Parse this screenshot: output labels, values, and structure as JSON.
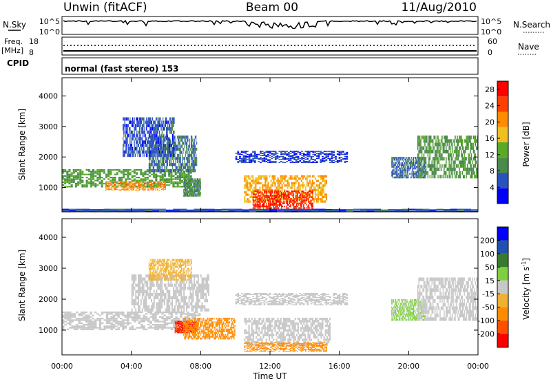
{
  "header": {
    "station": "Unwin (fitACF)",
    "beam": "Beam 00",
    "date": "11/Aug/2010"
  },
  "strips": {
    "nsky_label": "N.Sky",
    "nsky_ticks": [
      "10^5",
      "10^0"
    ],
    "nsearch_label": "N.Search",
    "nsearch_ticks": [
      "10^5",
      "10^0"
    ],
    "freq_label": "Freq.",
    "freq_unit": "[MHz]",
    "freq_ticks": [
      "18",
      "8"
    ],
    "nave_label": "Nave",
    "nave_ticks": [
      "60",
      "0"
    ],
    "cpid_label": "CPID",
    "cpid_text": "normal (fast stereo) 153"
  },
  "colors": {
    "power": [
      "#0000ff",
      "#2a52be",
      "#4a8a4a",
      "#5aaa28",
      "#f0c020",
      "#ff8c00",
      "#ff4000",
      "#ff0000"
    ],
    "velocity": [
      "#ff0000",
      "#ff5000",
      "#ff8c00",
      "#f0b030",
      "#c8c8c8",
      "#7fd040",
      "#3a7a30",
      "#2050b0",
      "#0000ff"
    ]
  },
  "chart_data": [
    {
      "type": "heatmap",
      "panel": "power",
      "ylabel": "Slant Range [km]",
      "yticks": [
        1000,
        2000,
        3000,
        4000
      ],
      "ylim": [
        200,
        4600
      ],
      "xlim": [
        0,
        24
      ],
      "xticks": [
        "00:00",
        "04:00",
        "08:00",
        "12:00",
        "16:00",
        "20:00",
        "00:00"
      ],
      "colorbar_label": "Power [dB]",
      "colorbar_ticks": [
        4,
        8,
        12,
        16,
        20,
        24,
        28
      ],
      "colorbar_range": [
        0,
        30
      ],
      "regions": [
        {
          "t0": 0.0,
          "t1": 7.5,
          "r0": 1000,
          "r1": 1600,
          "value": 12
        },
        {
          "t0": 2.5,
          "t1": 6.0,
          "r0": 900,
          "r1": 1200,
          "value": 22
        },
        {
          "t0": 5.0,
          "t1": 7.8,
          "r0": 1500,
          "r1": 2700,
          "value": 8
        },
        {
          "t0": 3.5,
          "t1": 6.5,
          "r0": 2000,
          "r1": 3300,
          "value": 6
        },
        {
          "t0": 7.0,
          "t1": 8.0,
          "r0": 700,
          "r1": 1300,
          "value": 10
        },
        {
          "t0": 10.5,
          "t1": 15.3,
          "r0": 500,
          "r1": 1400,
          "value": 20
        },
        {
          "t0": 11.0,
          "t1": 14.5,
          "r0": 300,
          "r1": 900,
          "value": 28
        },
        {
          "t0": 10.0,
          "t1": 16.5,
          "r0": 1800,
          "r1": 2200,
          "value": 5
        },
        {
          "t0": 19.0,
          "t1": 21.0,
          "r0": 1300,
          "r1": 2000,
          "value": 7
        },
        {
          "t0": 20.5,
          "t1": 24.0,
          "r0": 1300,
          "r1": 2700,
          "value": 11
        },
        {
          "t0": 0.0,
          "t1": 24.0,
          "r0": 200,
          "r1": 300,
          "value": 6
        }
      ]
    },
    {
      "type": "heatmap",
      "panel": "velocity",
      "ylabel": "Slant Range [km]",
      "yticks": [
        1000,
        2000,
        3000,
        4000
      ],
      "ylim": [
        200,
        4600
      ],
      "xlim": [
        0,
        24
      ],
      "xlabel": "Time UT",
      "xticks": [
        "00:00",
        "04:00",
        "08:00",
        "12:00",
        "16:00",
        "20:00",
        "00:00"
      ],
      "colorbar_label": "Velocity [m s",
      "colorbar_label_sup": "-1",
      "colorbar_label_end": "]",
      "colorbar_ticks": [
        "200",
        "100",
        "50",
        "15",
        "-15",
        "-50",
        "-100",
        "-200"
      ],
      "regions": [
        {
          "t0": 0.0,
          "t1": 8.0,
          "r0": 1000,
          "r1": 1600,
          "value": 0
        },
        {
          "t0": 4.0,
          "t1": 8.5,
          "r0": 1600,
          "r1": 2800,
          "value": 0
        },
        {
          "t0": 5.0,
          "t1": 7.5,
          "r0": 2600,
          "r1": 3300,
          "value": -30
        },
        {
          "t0": 6.5,
          "t1": 7.8,
          "r0": 900,
          "r1": 1300,
          "value": -200
        },
        {
          "t0": 7.0,
          "t1": 10.0,
          "r0": 700,
          "r1": 1400,
          "value": -70
        },
        {
          "t0": 10.5,
          "t1": 15.5,
          "r0": 500,
          "r1": 1400,
          "value": 0
        },
        {
          "t0": 10.5,
          "t1": 15.3,
          "r0": 300,
          "r1": 600,
          "value": -60
        },
        {
          "t0": 10.0,
          "t1": 16.5,
          "r0": 1800,
          "r1": 2200,
          "value": 0
        },
        {
          "t0": 19.0,
          "t1": 21.0,
          "r0": 1300,
          "r1": 2000,
          "value": 20
        },
        {
          "t0": 20.5,
          "t1": 24.0,
          "r0": 1300,
          "r1": 2700,
          "value": 0
        }
      ]
    }
  ]
}
